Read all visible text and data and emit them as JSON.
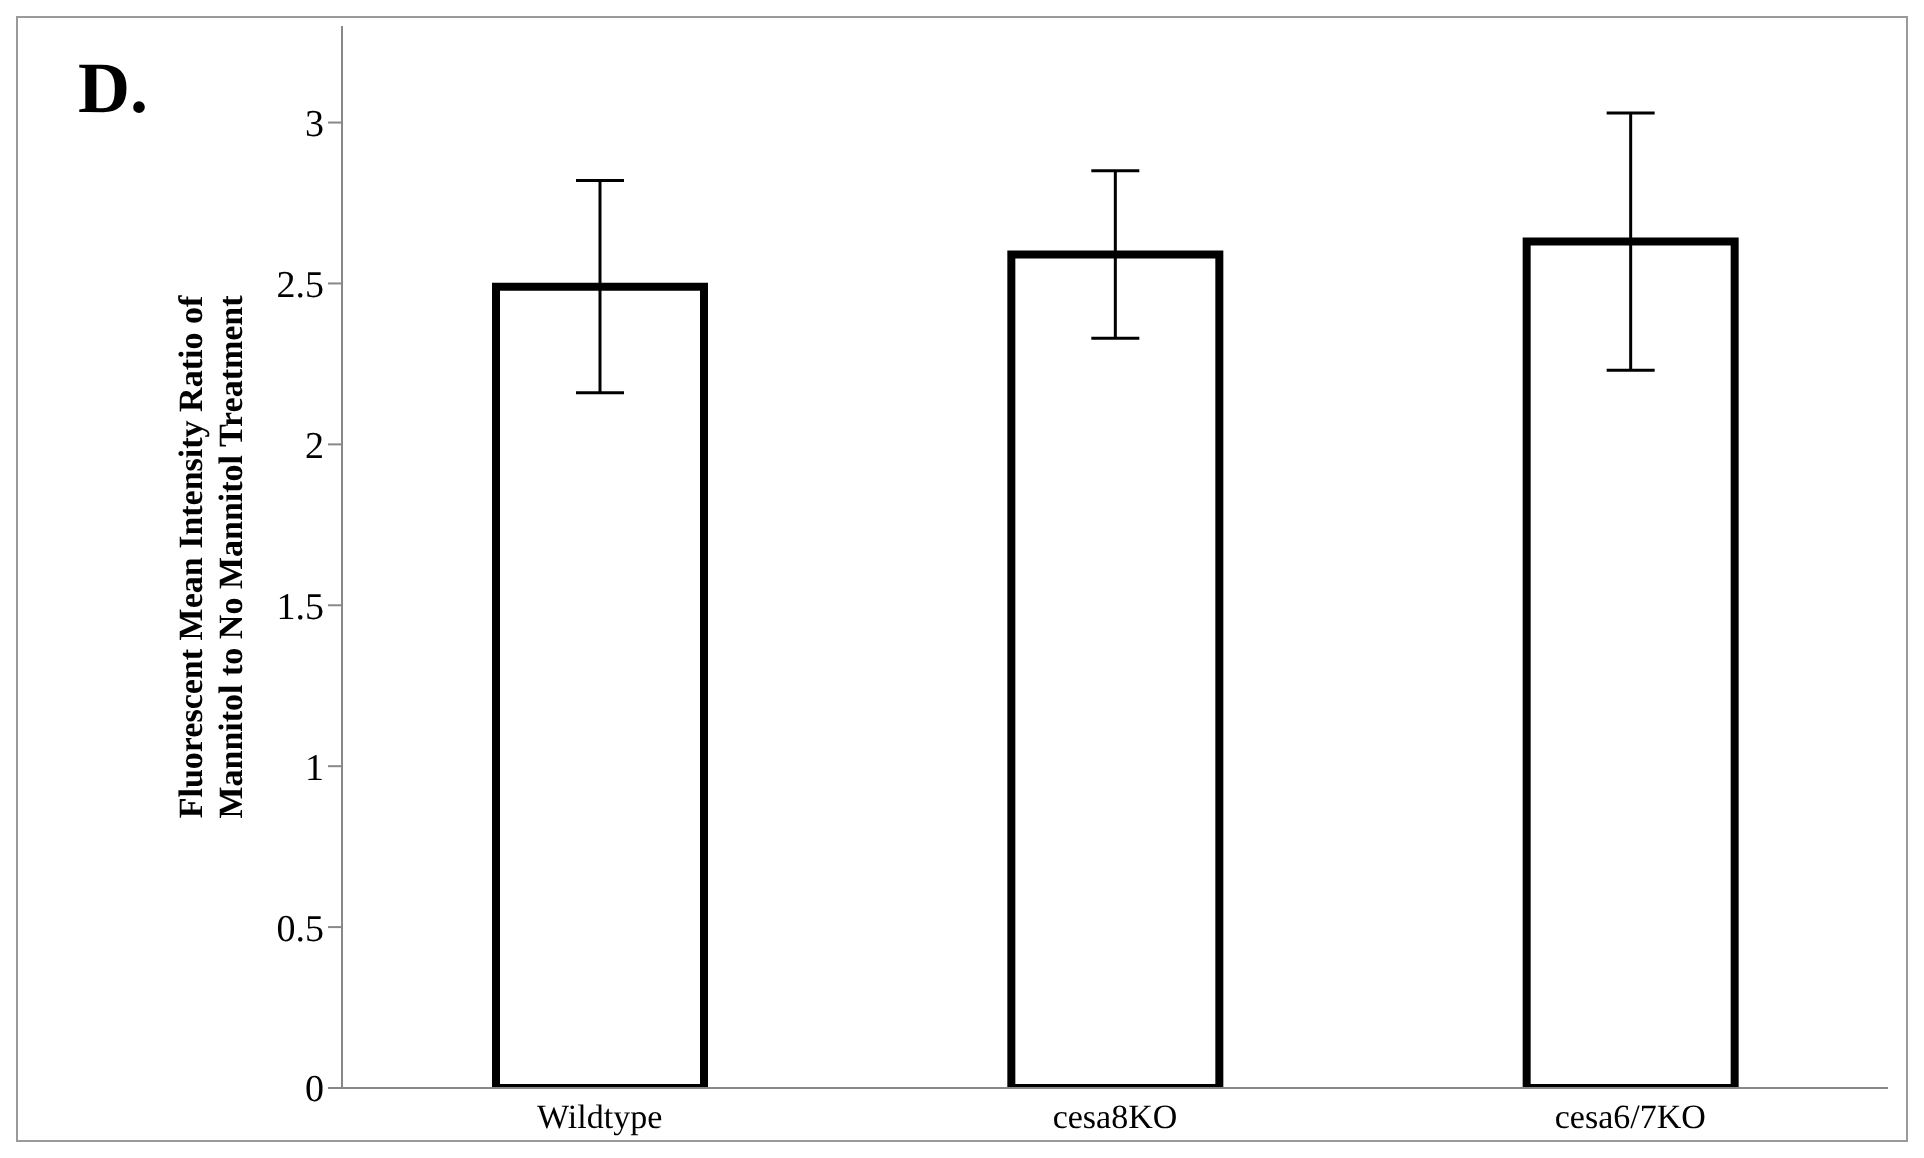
{
  "chart_data": {
    "type": "bar",
    "title": "D.",
    "ylabel": "Fluorescent Mean Intensity Ratio of\nMannitol to No Mannitol Treatment",
    "categories": [
      "Wildtype",
      "cesa8KO",
      "cesa6/7KO"
    ],
    "values": [
      2.49,
      2.59,
      2.63
    ],
    "errors": [
      0.33,
      0.26,
      0.4
    ],
    "color": "#ffffff",
    "ylim": [
      0,
      3.3
    ],
    "yticks": [
      0,
      0.5,
      1,
      1.5,
      2,
      2.5,
      3
    ],
    "grid": false
  }
}
